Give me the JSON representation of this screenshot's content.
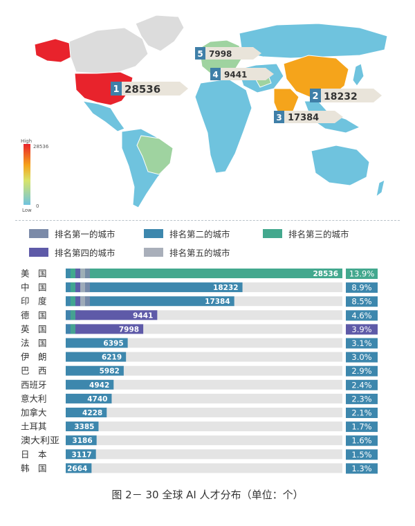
{
  "map": {
    "scale_high_label": "High",
    "scale_low_label": "Low",
    "scale_max_value": "28536",
    "scale_min_value": "0",
    "callouts": [
      {
        "rank": "1",
        "value": "28536",
        "country": "美国"
      },
      {
        "rank": "2",
        "value": "18232",
        "country": "中国"
      },
      {
        "rank": "3",
        "value": "17384",
        "country": "印度"
      },
      {
        "rank": "4",
        "value": "9441",
        "country": "德国"
      },
      {
        "rank": "5",
        "value": "7998",
        "country": "英国"
      }
    ],
    "colors": {
      "usa": "#e8232c",
      "china": "#f5a41b",
      "india": "#f5a41b",
      "europe": "#9fd3a0",
      "canada": "#dcdcdc",
      "brazil": "#9fd3a0",
      "other": "#6fc3de",
      "ocean": "#ffffff",
      "callout_tag": "#3f7fa8"
    }
  },
  "legend": [
    {
      "label": "排名第一的城市",
      "color": "#7b8aa8"
    },
    {
      "label": "排名第二的城市",
      "color": "#3d87ad"
    },
    {
      "label": "排名第三的城市",
      "color": "#43a88e"
    },
    {
      "label": "排名第四的城市",
      "color": "#5e5aa8"
    },
    {
      "label": "排名第五的城市",
      "color": "#a9afba"
    }
  ],
  "chart_data": {
    "type": "bar",
    "orientation": "horizontal",
    "categories": [
      "美　国",
      "中　国",
      "印　度",
      "德　国",
      "英　国",
      "法　国",
      "伊　朗",
      "巴　西",
      "西班牙",
      "意大利",
      "加拿大",
      "土耳其",
      "澳大利亚",
      "日　本",
      "韩　国"
    ],
    "values": [
      28536,
      18232,
      17384,
      9441,
      7998,
      6395,
      6219,
      5982,
      4942,
      4740,
      4228,
      3385,
      3186,
      3117,
      2664
    ],
    "percent_labels": [
      "13.9%",
      "8.9%",
      "8.5%",
      "4.6%",
      "3.9%",
      "3.1%",
      "3.0%",
      "2.9%",
      "2.4%",
      "2.3%",
      "2.1%",
      "1.7%",
      "1.6%",
      "1.5%",
      "1.3%"
    ],
    "bar_colors": [
      "#43a88e",
      "#3d87ad",
      "#3d87ad",
      "#5e5aa8",
      "#5e5aa8",
      "#3d87ad",
      "#3d87ad",
      "#3d87ad",
      "#3d87ad",
      "#3d87ad",
      "#3d87ad",
      "#3d87ad",
      "#3d87ad",
      "#3d87ad",
      "#3d87ad"
    ],
    "badge_colors": [
      "#43a88e",
      "#3d87ad",
      "#3d87ad",
      "#3d87ad",
      "#5e5aa8",
      "#3d87ad",
      "#3d87ad",
      "#3d87ad",
      "#3d87ad",
      "#3d87ad",
      "#3d87ad",
      "#3d87ad",
      "#3d87ad",
      "#3d87ad",
      "#3d87ad"
    ],
    "xlim": [
      0,
      28536
    ],
    "track_color": "#e4e4e4",
    "grid": false
  },
  "caption": "图 2－ 30  全球 AI 人才分布（单位：个）"
}
